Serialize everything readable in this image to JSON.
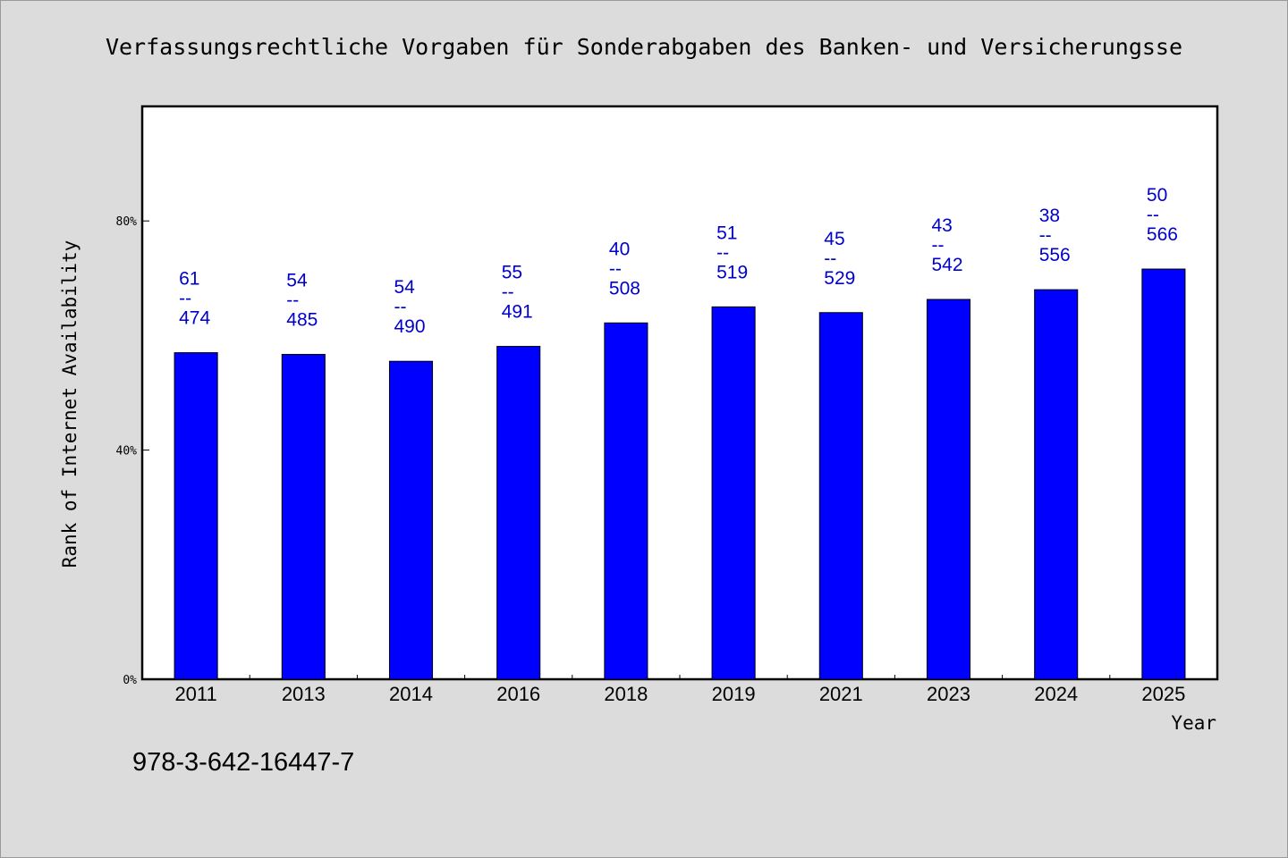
{
  "chart_data": {
    "type": "bar",
    "title": "Verfassungsrechtliche Vorgaben für Sonderabgaben des Banken- und Versicherungsse",
    "xlabel": "Year",
    "ylabel": "Rank of Internet Availability",
    "categories": [
      "2011",
      "2013",
      "2014",
      "2016",
      "2018",
      "2019",
      "2021",
      "2023",
      "2024",
      "2025"
    ],
    "values": [
      57,
      56.7,
      55.5,
      58.1,
      62.2,
      65,
      64,
      66.3,
      68,
      71.6
    ],
    "value_unit": "%",
    "ylim": [
      0,
      100
    ],
    "yticks": [
      0,
      40,
      80
    ],
    "ytick_labels": [
      "0%",
      "40%",
      "80%"
    ],
    "data_labels": [
      {
        "top": "61",
        "sep": "--",
        "bottom": "474"
      },
      {
        "top": "54",
        "sep": "--",
        "bottom": "485"
      },
      {
        "top": "54",
        "sep": "--",
        "bottom": "490"
      },
      {
        "top": "55",
        "sep": "--",
        "bottom": "491"
      },
      {
        "top": "40",
        "sep": "--",
        "bottom": "508"
      },
      {
        "top": "51",
        "sep": "--",
        "bottom": "519"
      },
      {
        "top": "45",
        "sep": "--",
        "bottom": "529"
      },
      {
        "top": "43",
        "sep": "--",
        "bottom": "542"
      },
      {
        "top": "38",
        "sep": "--",
        "bottom": "556"
      },
      {
        "top": "50",
        "sep": "--",
        "bottom": "566"
      }
    ],
    "bar_color": "#0000ff",
    "label_color": "#0000cd",
    "background_color": "#dcdcdc",
    "plot_background_color": "#ffffff",
    "grid": false,
    "legend": "none"
  },
  "footer": {
    "text": "978-3-642-16447-7"
  }
}
